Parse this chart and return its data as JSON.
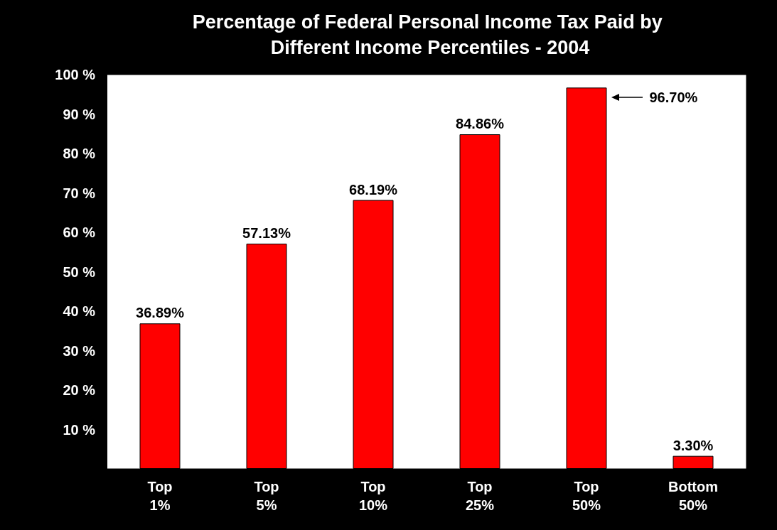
{
  "chart_data": {
    "type": "bar",
    "title": "Percentage of Federal Personal Income Tax Paid by Different Income Percentiles - 2004",
    "categories": [
      "Top 1%",
      "Top 5%",
      "Top 10%",
      "Top 25%",
      "Top 50%",
      "Bottom 50%"
    ],
    "values": [
      36.89,
      57.13,
      68.19,
      84.86,
      96.7,
      3.3
    ],
    "value_labels": [
      "36.89%",
      "57.13%",
      "68.19%",
      "84.86%",
      null,
      "3.30%"
    ],
    "annotations": [
      "96.70%"
    ],
    "color": "#ff0000",
    "ylim": [
      0,
      100
    ],
    "yticks": [
      {
        "value": 0,
        "label": null
      },
      {
        "value": 10,
        "label": "10 %"
      },
      {
        "value": 20,
        "label": "20 %"
      },
      {
        "value": 30,
        "label": "30 %"
      },
      {
        "value": 40,
        "label": "40 %"
      },
      {
        "value": 50,
        "label": "50 %"
      },
      {
        "value": 60,
        "label": "60 %"
      },
      {
        "value": 70,
        "label": "70 %"
      },
      {
        "value": 80,
        "label": "80 %"
      },
      {
        "value": 90,
        "label": "90 %"
      },
      {
        "value": 100,
        "label": "100 %"
      }
    ],
    "grid": false
  }
}
